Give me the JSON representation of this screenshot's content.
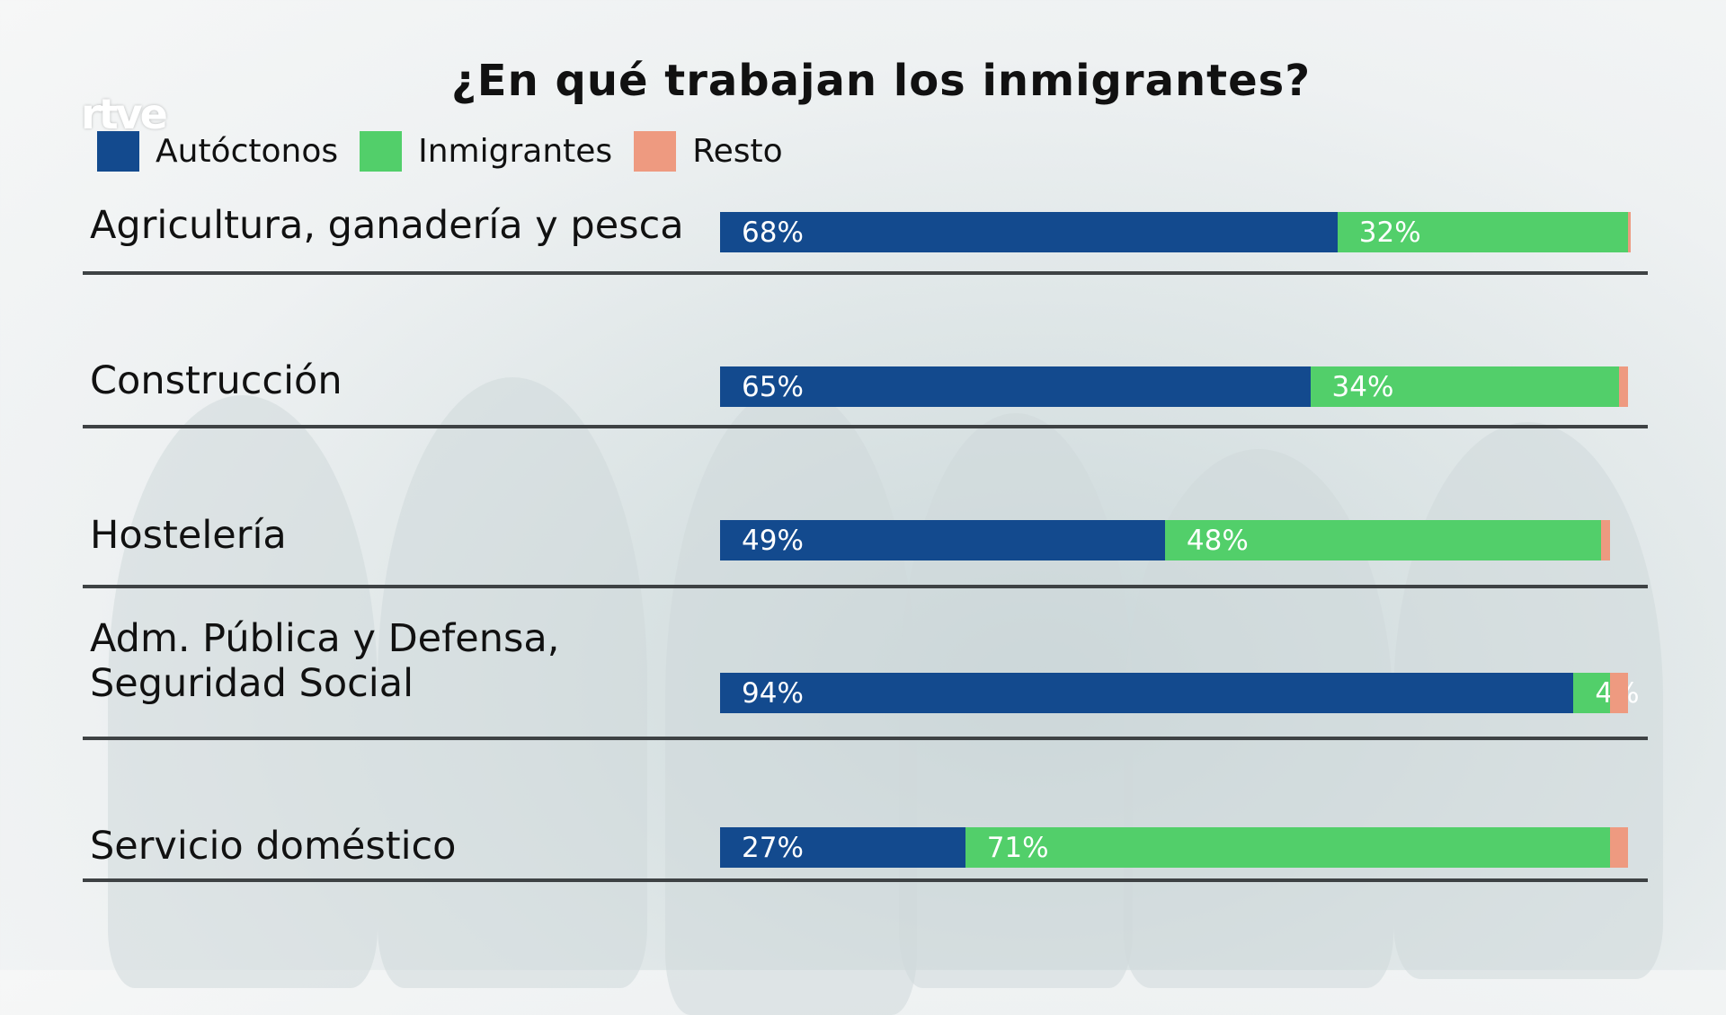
{
  "logo": "rtve",
  "chart_data": {
    "type": "bar",
    "orientation": "horizontal",
    "stacked": true,
    "title": "¿En qué trabajan los inmigrantes?",
    "legend_position": "top-left",
    "grid": false,
    "colors": {
      "Autóctonos": "#134a8e",
      "Inmigrantes": "#52cf6a",
      "Resto": "#ee9a80"
    },
    "categories": [
      "Agricultura, ganadería y pesca",
      "Construcción",
      "Hostelería",
      "Adm. Pública y Defensa,\nSeguridad Social",
      "Servicio doméstico"
    ],
    "series": [
      {
        "name": "Autóctonos",
        "values": [
          68,
          65,
          49,
          94,
          27
        ],
        "labels": [
          "68%",
          "65%",
          "49%",
          "94%",
          "27%"
        ]
      },
      {
        "name": "Inmigrantes",
        "values": [
          32,
          34,
          48,
          4,
          71
        ],
        "labels": [
          "32%",
          "34%",
          "48%",
          "4%",
          "71%"
        ]
      },
      {
        "name": "Resto",
        "values": [
          0.3,
          1,
          1,
          2,
          2
        ]
      }
    ],
    "xlim": [
      0,
      100
    ]
  }
}
